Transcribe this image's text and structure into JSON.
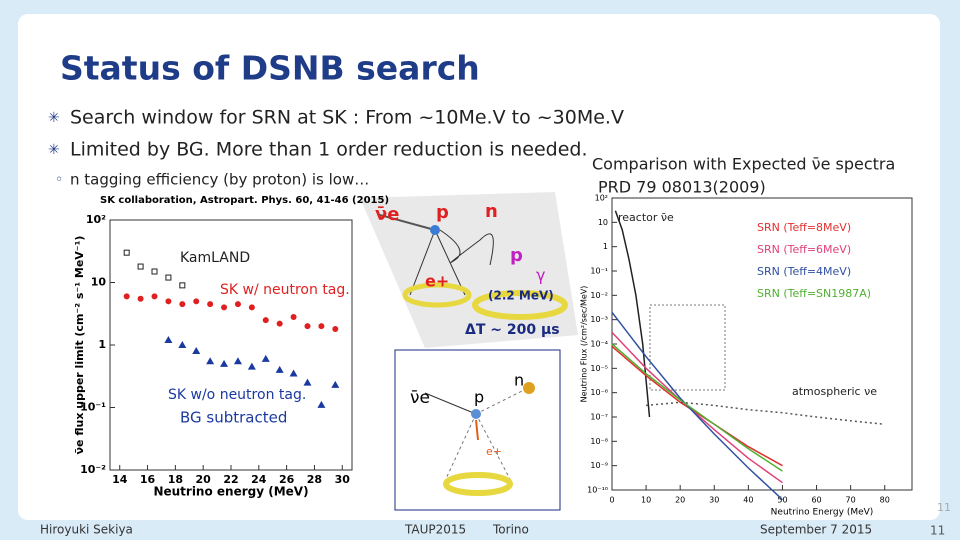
{
  "slide": {
    "title": "Status of DSNB search",
    "bullets": [
      "Search window for SRN at SK : From ~10Me.V to ~30Me.V",
      "Limited by BG. More than 1 order reduction is needed."
    ],
    "sub_bullet": "n tagging efficiency (by proton) is low…",
    "caption": [
      "Comparison with Expected ν̄e spectra",
      "PRD 79 08013(2009)"
    ],
    "footer": {
      "author": "Hiroyuki Sekiya",
      "conference": "TAUP2015",
      "place": "Torino",
      "date": "September 7 2015",
      "page": "11",
      "page_mark": "11"
    }
  },
  "diagrams": {
    "top": [
      "ν̄e",
      "p",
      "n",
      "e+",
      "p",
      "γ",
      "(2.2 MeV)",
      "ΔT ~ 200 μs"
    ],
    "bottom": [
      "ν̄e",
      "p",
      "n",
      "e+"
    ]
  },
  "chart_data": [
    {
      "type": "scatter",
      "title": "SK collaboration, Astropart. Phys. 60, 41-46 (2015)",
      "x_label": "Neutrino energy (MeV)",
      "y_label": "ν̄e flux upper limit (cm⁻² s⁻¹ MeV⁻¹)",
      "xlim": [
        13.3,
        30.7
      ],
      "xticks": [
        14,
        16,
        18,
        20,
        22,
        24,
        26,
        28,
        30
      ],
      "log_y": true,
      "ylim": [
        0.01,
        100
      ],
      "yticks": [
        {
          "value": 100,
          "label": "10²"
        },
        10,
        1,
        {
          "value": 0.1,
          "label": "10⁻¹"
        },
        {
          "value": 0.01,
          "label": "10⁻²"
        }
      ],
      "annotation": "BG subtracted",
      "series": [
        {
          "name": "KamLAND",
          "color": "#222222",
          "marker": "square",
          "x": [
            14.5,
            15.5,
            16.5,
            17.5,
            18.5
          ],
          "values": [
            30,
            18,
            15,
            12,
            9
          ]
        },
        {
          "name": "SK w/ neutron tag.",
          "color": "#e02020",
          "marker": "circle",
          "x": [
            14.5,
            15.5,
            16.5,
            17.5,
            18.5,
            19.5,
            20.5,
            21.5,
            22.5,
            23.5,
            24.5,
            25.5,
            26.5,
            27.5,
            28.5,
            29.5
          ],
          "values": [
            6,
            5.5,
            6,
            5,
            4.5,
            5,
            4.5,
            4,
            4.5,
            4,
            2.5,
            2.2,
            2.8,
            2,
            2,
            1.8
          ]
        },
        {
          "name": "SK w/o neutron tag.",
          "color": "#1a3aa0",
          "marker": "triangle",
          "x": [
            17.5,
            18.5,
            19.5,
            20.5,
            21.5,
            22.5,
            23.5,
            24.5,
            25.5,
            26.5,
            27.5,
            28.5,
            29.5
          ],
          "values": [
            1.2,
            1,
            0.8,
            0.55,
            0.5,
            0.55,
            0.45,
            0.6,
            0.4,
            0.35,
            0.25,
            0.11,
            0.23
          ]
        }
      ]
    },
    {
      "type": "line",
      "x_label": "Neutrino Energy (MeV)",
      "y_label": "Neutrino Flux (/cm²/sec/MeV)",
      "xlim": [
        0,
        88
      ],
      "xticks": [
        0,
        10,
        20,
        30,
        40,
        50,
        60,
        70,
        80
      ],
      "log_y": true,
      "ylim": [
        1e-10,
        100
      ],
      "yticks": [
        {
          "value": 100,
          "label": "10²"
        },
        {
          "value": 10,
          "label": "10"
        },
        {
          "value": 1,
          "label": "1"
        },
        {
          "value": 0.1,
          "label": "10⁻¹"
        },
        {
          "value": 0.01,
          "label": "10⁻²"
        },
        {
          "value": 0.001,
          "label": "10⁻³"
        },
        {
          "value": 0.0001,
          "label": "10⁻⁴"
        },
        {
          "value": 1e-05,
          "label": "10⁻⁵"
        },
        {
          "value": 1e-06,
          "label": "10⁻⁶"
        },
        {
          "value": 1e-07,
          "label": "10⁻⁷"
        },
        {
          "value": 1e-08,
          "label": "10⁻⁸"
        },
        {
          "value": 1e-09,
          "label": "10⁻⁹"
        },
        {
          "value": 1e-10,
          "label": "10⁻¹⁰"
        }
      ],
      "series": [
        {
          "name": "reactor ν̄e",
          "color": "#222222",
          "x": [
            1,
            3,
            5,
            7,
            9,
            11
          ],
          "values": [
            30,
            5,
            0.3,
            0.01,
            0.0001,
            1e-07
          ]
        },
        {
          "name": "SRN (Teff=8MeV)",
          "color": "#e03030",
          "x": [
            0,
            10,
            20,
            30,
            40,
            50
          ],
          "values": [
            8e-05,
            5e-06,
            4e-07,
            5e-08,
            6e-09,
            1e-09
          ]
        },
        {
          "name": "SRN (Teff=6MeV)",
          "color": "#e0407a",
          "x": [
            0,
            10,
            20,
            30,
            40,
            50
          ],
          "values": [
            0.0003,
            1e-05,
            5e-07,
            3e-08,
            2e-09,
            2e-10
          ]
        },
        {
          "name": "SRN (Teff=4MeV)",
          "color": "#3050a0",
          "x": [
            0,
            10,
            20,
            30,
            40,
            50
          ],
          "values": [
            0.002,
            3e-05,
            6e-07,
            2e-08,
            8e-10,
            4e-11
          ]
        },
        {
          "name": "SRN (Teff=SN1987A)",
          "color": "#50b030",
          "x": [
            0,
            10,
            20,
            30,
            40,
            50
          ],
          "values": [
            0.0001,
            6e-06,
            5e-07,
            5e-08,
            5e-09,
            6e-10
          ]
        },
        {
          "name": "atmospheric νe",
          "color": "#555555",
          "dashed": true,
          "x": [
            10,
            20,
            30,
            40,
            50,
            60,
            70,
            80
          ],
          "values": [
            3e-07,
            4e-07,
            3e-07,
            2e-07,
            1.5e-07,
            1e-07,
            7e-08,
            5e-08
          ]
        }
      ]
    }
  ]
}
